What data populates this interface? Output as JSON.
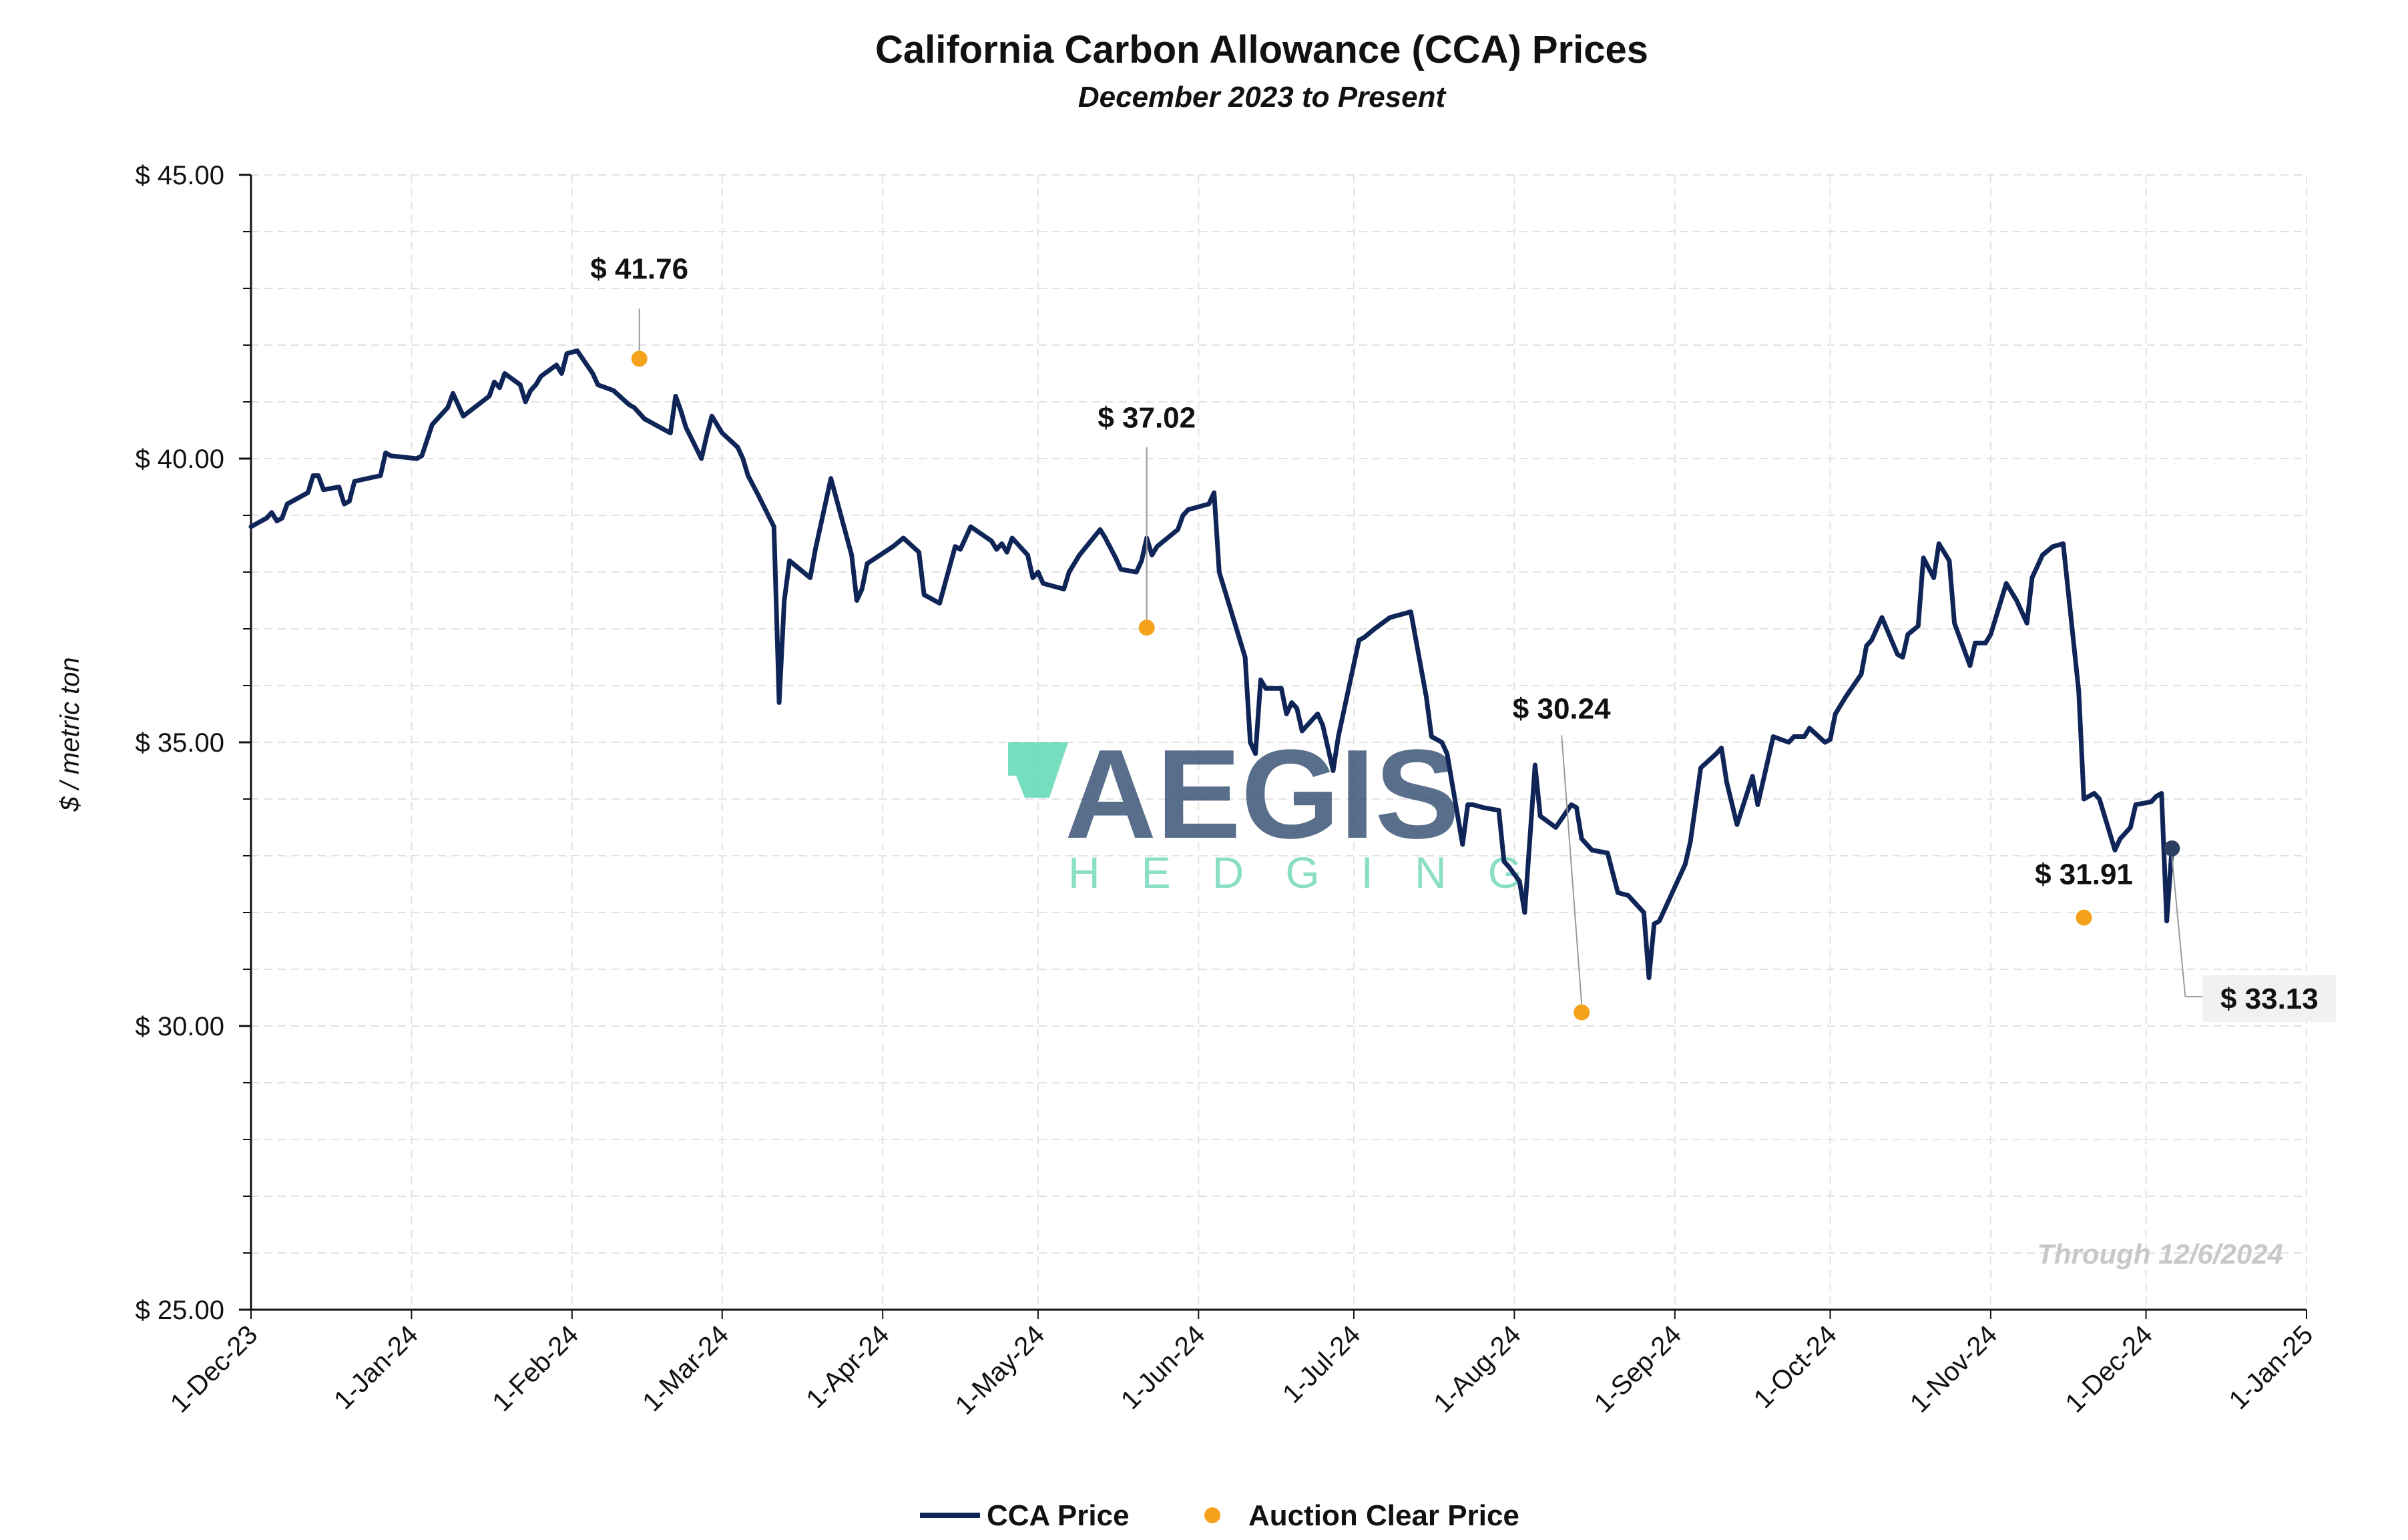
{
  "chart_data": {
    "type": "line",
    "title": "California Carbon Allowance (CCA) Prices",
    "subtitle": "December 2023 to Present",
    "ylabel": "$ / metric ton",
    "xlabel": "",
    "ylim": [
      25,
      45
    ],
    "y_ticks": [
      "$ 25.00",
      "$ 30.00",
      "$ 35.00",
      "$ 40.00",
      "$ 45.00"
    ],
    "x_ticks": [
      "1-Dec-23",
      "1-Jan-24",
      "1-Feb-24",
      "1-Mar-24",
      "1-Apr-24",
      "1-May-24",
      "1-Jun-24",
      "1-Jul-24",
      "1-Aug-24",
      "1-Sep-24",
      "1-Oct-24",
      "1-Nov-24",
      "1-Dec-24",
      "1-Jan-25"
    ],
    "grid": true,
    "legend_position": "bottom-center",
    "series": [
      {
        "name": "CCA Price",
        "color": "#0f2557",
        "points": [
          [
            "2023-12-01",
            38.8
          ],
          [
            "2023-12-04",
            38.95
          ],
          [
            "2023-12-05",
            39.05
          ],
          [
            "2023-12-06",
            38.9
          ],
          [
            "2023-12-07",
            38.95
          ],
          [
            "2023-12-08",
            39.2
          ],
          [
            "2023-12-12",
            39.4
          ],
          [
            "2023-12-13",
            39.7
          ],
          [
            "2023-12-14",
            39.7
          ],
          [
            "2023-12-15",
            39.45
          ],
          [
            "2023-12-18",
            39.5
          ],
          [
            "2023-12-19",
            39.2
          ],
          [
            "2023-12-20",
            39.25
          ],
          [
            "2023-12-21",
            39.6
          ],
          [
            "2023-12-26",
            39.7
          ],
          [
            "2023-12-27",
            40.1
          ],
          [
            "2023-12-28",
            40.05
          ],
          [
            "2024-01-02",
            40.0
          ],
          [
            "2024-01-03",
            40.05
          ],
          [
            "2024-01-05",
            40.6
          ],
          [
            "2024-01-08",
            40.9
          ],
          [
            "2024-01-09",
            41.15
          ],
          [
            "2024-01-10",
            40.95
          ],
          [
            "2024-01-11",
            40.75
          ],
          [
            "2024-01-16",
            41.1
          ],
          [
            "2024-01-17",
            41.35
          ],
          [
            "2024-01-18",
            41.25
          ],
          [
            "2024-01-19",
            41.5
          ],
          [
            "2024-01-22",
            41.3
          ],
          [
            "2024-01-23",
            41.0
          ],
          [
            "2024-01-24",
            41.2
          ],
          [
            "2024-01-25",
            41.3
          ],
          [
            "2024-01-26",
            41.45
          ],
          [
            "2024-01-29",
            41.65
          ],
          [
            "2024-01-30",
            41.5
          ],
          [
            "2024-01-31",
            41.85
          ],
          [
            "2024-02-02",
            41.9
          ],
          [
            "2024-02-05",
            41.5
          ],
          [
            "2024-02-06",
            41.3
          ],
          [
            "2024-02-09",
            41.2
          ],
          [
            "2024-02-12",
            40.95
          ],
          [
            "2024-02-13",
            40.9
          ],
          [
            "2024-02-14",
            40.8
          ],
          [
            "2024-02-15",
            40.7
          ],
          [
            "2024-02-20",
            40.45
          ],
          [
            "2024-02-21",
            41.1
          ],
          [
            "2024-02-22",
            40.85
          ],
          [
            "2024-02-23",
            40.55
          ],
          [
            "2024-02-26",
            40.0
          ],
          [
            "2024-02-27",
            40.4
          ],
          [
            "2024-02-28",
            40.75
          ],
          [
            "2024-02-29",
            40.6
          ],
          [
            "2024-03-01",
            40.45
          ],
          [
            "2024-03-04",
            40.2
          ],
          [
            "2024-03-05",
            40.0
          ],
          [
            "2024-03-06",
            39.7
          ],
          [
            "2024-03-08",
            39.35
          ],
          [
            "2024-03-11",
            38.8
          ],
          [
            "2024-03-12",
            35.7
          ],
          [
            "2024-03-13",
            37.5
          ],
          [
            "2024-03-14",
            38.2
          ],
          [
            "2024-03-18",
            37.9
          ],
          [
            "2024-03-19",
            38.4
          ],
          [
            "2024-03-22",
            39.65
          ],
          [
            "2024-03-26",
            38.3
          ],
          [
            "2024-03-27",
            37.5
          ],
          [
            "2024-03-28",
            37.7
          ],
          [
            "2024-03-29",
            38.15
          ],
          [
            "2024-04-03",
            38.45
          ],
          [
            "2024-04-05",
            38.6
          ],
          [
            "2024-04-08",
            38.35
          ],
          [
            "2024-04-09",
            37.6
          ],
          [
            "2024-04-12",
            37.45
          ],
          [
            "2024-04-15",
            38.45
          ],
          [
            "2024-04-16",
            38.4
          ],
          [
            "2024-04-17",
            38.6
          ],
          [
            "2024-04-18",
            38.8
          ],
          [
            "2024-04-22",
            38.55
          ],
          [
            "2024-04-23",
            38.4
          ],
          [
            "2024-04-24",
            38.5
          ],
          [
            "2024-04-25",
            38.35
          ],
          [
            "2024-04-26",
            38.6
          ],
          [
            "2024-04-29",
            38.3
          ],
          [
            "2024-04-30",
            37.9
          ],
          [
            "2024-05-01",
            38.0
          ],
          [
            "2024-05-02",
            37.8
          ],
          [
            "2024-05-06",
            37.7
          ],
          [
            "2024-05-07",
            38.0
          ],
          [
            "2024-05-09",
            38.3
          ],
          [
            "2024-05-13",
            38.75
          ],
          [
            "2024-05-14",
            38.6
          ],
          [
            "2024-05-16",
            38.25
          ],
          [
            "2024-05-17",
            38.05
          ],
          [
            "2024-05-20",
            38.0
          ],
          [
            "2024-05-21",
            38.2
          ],
          [
            "2024-05-22",
            38.6
          ],
          [
            "2024-05-23",
            38.3
          ],
          [
            "2024-05-24",
            38.45
          ],
          [
            "2024-05-28",
            38.75
          ],
          [
            "2024-05-29",
            39.0
          ],
          [
            "2024-05-30",
            39.1
          ],
          [
            "2024-06-03",
            39.2
          ],
          [
            "2024-06-04",
            39.4
          ],
          [
            "2024-06-05",
            38.0
          ],
          [
            "2024-06-10",
            36.5
          ],
          [
            "2024-06-11",
            35.0
          ],
          [
            "2024-06-12",
            34.8
          ],
          [
            "2024-06-13",
            36.1
          ],
          [
            "2024-06-14",
            35.95
          ],
          [
            "2024-06-17",
            35.95
          ],
          [
            "2024-06-18",
            35.5
          ],
          [
            "2024-06-19",
            35.7
          ],
          [
            "2024-06-20",
            35.6
          ],
          [
            "2024-06-21",
            35.2
          ],
          [
            "2024-06-24",
            35.5
          ],
          [
            "2024-06-25",
            35.3
          ],
          [
            "2024-06-26",
            34.9
          ],
          [
            "2024-06-27",
            34.5
          ],
          [
            "2024-06-28",
            35.1
          ],
          [
            "2024-07-02",
            36.8
          ],
          [
            "2024-07-03",
            36.85
          ],
          [
            "2024-07-05",
            37.0
          ],
          [
            "2024-07-08",
            37.2
          ],
          [
            "2024-07-10",
            37.25
          ],
          [
            "2024-07-12",
            37.3
          ],
          [
            "2024-07-15",
            35.8
          ],
          [
            "2024-07-16",
            35.1
          ],
          [
            "2024-07-18",
            35.0
          ],
          [
            "2024-07-19",
            34.8
          ],
          [
            "2024-07-22",
            33.2
          ],
          [
            "2024-07-23",
            33.9
          ],
          [
            "2024-07-24",
            33.9
          ],
          [
            "2024-07-26",
            33.85
          ],
          [
            "2024-07-29",
            33.8
          ],
          [
            "2024-07-30",
            32.9
          ],
          [
            "2024-07-31",
            32.8
          ],
          [
            "2024-08-02",
            32.55
          ],
          [
            "2024-08-03",
            32.0
          ],
          [
            "2024-08-05",
            34.6
          ],
          [
            "2024-08-06",
            33.7
          ],
          [
            "2024-08-09",
            33.5
          ],
          [
            "2024-08-12",
            33.9
          ],
          [
            "2024-08-13",
            33.85
          ],
          [
            "2024-08-14",
            33.3
          ],
          [
            "2024-08-16",
            33.1
          ],
          [
            "2024-08-19",
            33.05
          ],
          [
            "2024-08-20",
            32.7
          ],
          [
            "2024-08-21",
            32.35
          ],
          [
            "2024-08-23",
            32.3
          ],
          [
            "2024-08-26",
            32.0
          ],
          [
            "2024-08-27",
            30.85
          ],
          [
            "2024-08-28",
            31.8
          ],
          [
            "2024-08-29",
            31.85
          ],
          [
            "2024-09-03",
            32.85
          ],
          [
            "2024-09-04",
            33.25
          ],
          [
            "2024-09-06",
            34.55
          ],
          [
            "2024-09-09",
            34.8
          ],
          [
            "2024-09-10",
            34.9
          ],
          [
            "2024-09-11",
            34.3
          ],
          [
            "2024-09-13",
            33.55
          ],
          [
            "2024-09-16",
            34.4
          ],
          [
            "2024-09-17",
            33.9
          ],
          [
            "2024-09-18",
            34.3
          ],
          [
            "2024-09-20",
            35.1
          ],
          [
            "2024-09-23",
            35.0
          ],
          [
            "2024-09-24",
            35.1
          ],
          [
            "2024-09-26",
            35.1
          ],
          [
            "2024-09-27",
            35.25
          ],
          [
            "2024-09-30",
            35.0
          ],
          [
            "2024-10-01",
            35.05
          ],
          [
            "2024-10-02",
            35.5
          ],
          [
            "2024-10-04",
            35.8
          ],
          [
            "2024-10-07",
            36.2
          ],
          [
            "2024-10-08",
            36.7
          ],
          [
            "2024-10-09",
            36.8
          ],
          [
            "2024-10-11",
            37.2
          ],
          [
            "2024-10-14",
            36.55
          ],
          [
            "2024-10-15",
            36.5
          ],
          [
            "2024-10-16",
            36.9
          ],
          [
            "2024-10-18",
            37.05
          ],
          [
            "2024-10-19",
            38.25
          ],
          [
            "2024-10-21",
            37.9
          ],
          [
            "2024-10-22",
            38.5
          ],
          [
            "2024-10-23",
            38.35
          ],
          [
            "2024-10-24",
            38.2
          ],
          [
            "2024-10-25",
            37.1
          ],
          [
            "2024-10-28",
            36.35
          ],
          [
            "2024-10-29",
            36.75
          ],
          [
            "2024-10-31",
            36.75
          ],
          [
            "2024-11-01",
            36.9
          ],
          [
            "2024-11-04",
            37.8
          ],
          [
            "2024-11-06",
            37.5
          ],
          [
            "2024-11-08",
            37.1
          ],
          [
            "2024-11-09",
            37.9
          ],
          [
            "2024-11-11",
            38.3
          ],
          [
            "2024-11-13",
            38.45
          ],
          [
            "2024-11-15",
            38.5
          ],
          [
            "2024-11-18",
            35.9
          ],
          [
            "2024-11-19",
            34.0
          ],
          [
            "2024-11-21",
            34.1
          ],
          [
            "2024-11-22",
            34.0
          ],
          [
            "2024-11-25",
            33.1
          ],
          [
            "2024-11-26",
            33.3
          ],
          [
            "2024-11-27",
            33.4
          ],
          [
            "2024-11-28",
            33.5
          ],
          [
            "2024-11-29",
            33.9
          ],
          [
            "2024-12-02",
            33.95
          ],
          [
            "2024-12-03",
            34.05
          ],
          [
            "2024-12-04",
            34.1
          ],
          [
            "2024-12-05",
            31.85
          ],
          [
            "2024-12-06",
            33.13
          ]
        ]
      },
      {
        "name": "Auction Clear Price",
        "color": "#f5a21b",
        "points": [
          [
            "2024-02-14",
            41.76
          ],
          [
            "2024-05-22",
            37.02
          ],
          [
            "2024-08-14",
            30.24
          ],
          [
            "2024-11-19",
            31.91
          ]
        ]
      }
    ],
    "annotations": [
      "$ 41.76",
      "$ 37.02",
      "$ 30.24",
      "$ 31.91",
      "$ 33.13"
    ],
    "note": "Through 12/6/2024"
  },
  "watermark": {
    "brand": "AEGIS",
    "tagline": "HEDGING"
  }
}
